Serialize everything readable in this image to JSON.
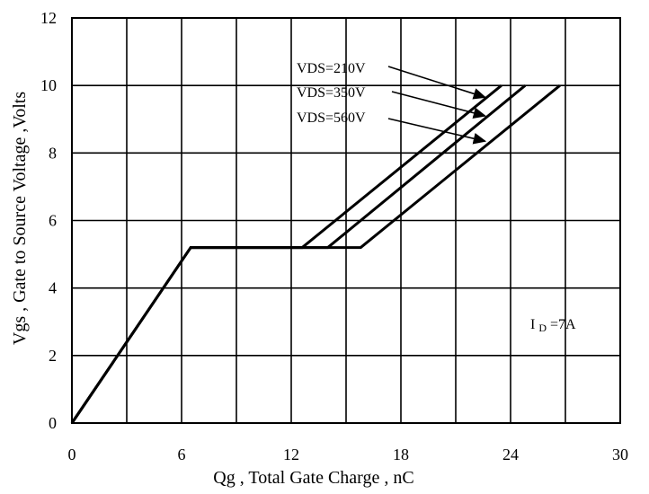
{
  "chart_data": {
    "type": "line",
    "title": "",
    "xlabel": "Qg , Total Gate Charge , nC",
    "ylabel": "Vgs , Gate to Source Voltage ,Volts",
    "xlim": [
      0,
      30
    ],
    "ylim": [
      0,
      12
    ],
    "x_ticks": [
      0,
      6,
      12,
      18,
      24,
      30
    ],
    "y_ticks": [
      0,
      2,
      4,
      6,
      8,
      10,
      12
    ],
    "x_tick_labels": [
      "0",
      "6",
      "12",
      "18",
      "24",
      "30"
    ],
    "y_tick_labels": [
      "0",
      "2",
      "4",
      "6",
      "8",
      "10",
      "12"
    ],
    "grid": true,
    "grid_color": "#000000",
    "line_color": "#000000",
    "series": [
      {
        "name": "VDS=210V",
        "x": [
          0,
          6.5,
          12.6,
          23.5
        ],
        "y": [
          0,
          5.2,
          5.2,
          10
        ]
      },
      {
        "name": "VDS=350V",
        "x": [
          0,
          6.5,
          14.0,
          24.8
        ],
        "y": [
          0,
          5.2,
          5.2,
          10
        ]
      },
      {
        "name": "VDS=560V",
        "x": [
          0,
          6.5,
          15.8,
          26.7
        ],
        "y": [
          0,
          5.2,
          5.2,
          10
        ]
      }
    ],
    "annotations": [
      {
        "id": "vds210",
        "text": "VDS=210V",
        "arrow_to": [
          22.6,
          9.65
        ]
      },
      {
        "id": "vds350",
        "text": "VDS=350V",
        "arrow_to": [
          22.6,
          9.1
        ]
      },
      {
        "id": "vds560",
        "text": "VDS=560V",
        "arrow_to": [
          22.6,
          8.35
        ]
      }
    ],
    "id_label": {
      "prefix": "I",
      "subscript": "D",
      "suffix": "=7A"
    }
  }
}
